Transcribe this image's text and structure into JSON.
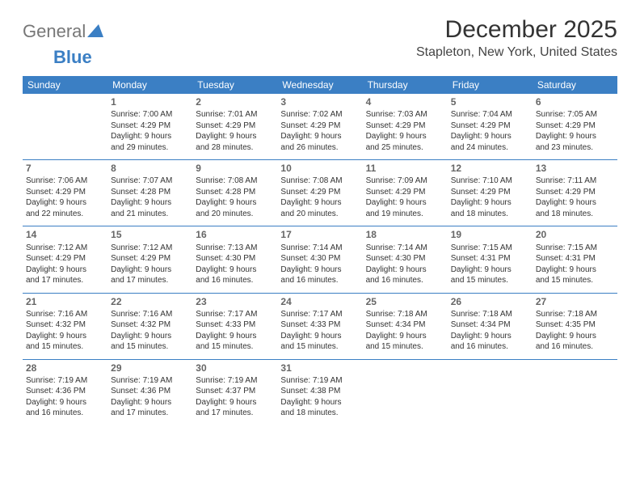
{
  "logo": {
    "text1": "General",
    "text2": "Blue"
  },
  "title": "December 2025",
  "location": "Stapleton, New York, United States",
  "colors": {
    "header_bg": "#3b7fc4",
    "header_fg": "#ffffff",
    "border": "#3b7fc4",
    "text": "#333333",
    "daynum": "#666666"
  },
  "dayHeaders": [
    "Sunday",
    "Monday",
    "Tuesday",
    "Wednesday",
    "Thursday",
    "Friday",
    "Saturday"
  ],
  "weeks": [
    [
      null,
      {
        "d": "1",
        "sr": "Sunrise: 7:00 AM",
        "ss": "Sunset: 4:29 PM",
        "dl1": "Daylight: 9 hours",
        "dl2": "and 29 minutes."
      },
      {
        "d": "2",
        "sr": "Sunrise: 7:01 AM",
        "ss": "Sunset: 4:29 PM",
        "dl1": "Daylight: 9 hours",
        "dl2": "and 28 minutes."
      },
      {
        "d": "3",
        "sr": "Sunrise: 7:02 AM",
        "ss": "Sunset: 4:29 PM",
        "dl1": "Daylight: 9 hours",
        "dl2": "and 26 minutes."
      },
      {
        "d": "4",
        "sr": "Sunrise: 7:03 AM",
        "ss": "Sunset: 4:29 PM",
        "dl1": "Daylight: 9 hours",
        "dl2": "and 25 minutes."
      },
      {
        "d": "5",
        "sr": "Sunrise: 7:04 AM",
        "ss": "Sunset: 4:29 PM",
        "dl1": "Daylight: 9 hours",
        "dl2": "and 24 minutes."
      },
      {
        "d": "6",
        "sr": "Sunrise: 7:05 AM",
        "ss": "Sunset: 4:29 PM",
        "dl1": "Daylight: 9 hours",
        "dl2": "and 23 minutes."
      }
    ],
    [
      {
        "d": "7",
        "sr": "Sunrise: 7:06 AM",
        "ss": "Sunset: 4:29 PM",
        "dl1": "Daylight: 9 hours",
        "dl2": "and 22 minutes."
      },
      {
        "d": "8",
        "sr": "Sunrise: 7:07 AM",
        "ss": "Sunset: 4:28 PM",
        "dl1": "Daylight: 9 hours",
        "dl2": "and 21 minutes."
      },
      {
        "d": "9",
        "sr": "Sunrise: 7:08 AM",
        "ss": "Sunset: 4:28 PM",
        "dl1": "Daylight: 9 hours",
        "dl2": "and 20 minutes."
      },
      {
        "d": "10",
        "sr": "Sunrise: 7:08 AM",
        "ss": "Sunset: 4:29 PM",
        "dl1": "Daylight: 9 hours",
        "dl2": "and 20 minutes."
      },
      {
        "d": "11",
        "sr": "Sunrise: 7:09 AM",
        "ss": "Sunset: 4:29 PM",
        "dl1": "Daylight: 9 hours",
        "dl2": "and 19 minutes."
      },
      {
        "d": "12",
        "sr": "Sunrise: 7:10 AM",
        "ss": "Sunset: 4:29 PM",
        "dl1": "Daylight: 9 hours",
        "dl2": "and 18 minutes."
      },
      {
        "d": "13",
        "sr": "Sunrise: 7:11 AM",
        "ss": "Sunset: 4:29 PM",
        "dl1": "Daylight: 9 hours",
        "dl2": "and 18 minutes."
      }
    ],
    [
      {
        "d": "14",
        "sr": "Sunrise: 7:12 AM",
        "ss": "Sunset: 4:29 PM",
        "dl1": "Daylight: 9 hours",
        "dl2": "and 17 minutes."
      },
      {
        "d": "15",
        "sr": "Sunrise: 7:12 AM",
        "ss": "Sunset: 4:29 PM",
        "dl1": "Daylight: 9 hours",
        "dl2": "and 17 minutes."
      },
      {
        "d": "16",
        "sr": "Sunrise: 7:13 AM",
        "ss": "Sunset: 4:30 PM",
        "dl1": "Daylight: 9 hours",
        "dl2": "and 16 minutes."
      },
      {
        "d": "17",
        "sr": "Sunrise: 7:14 AM",
        "ss": "Sunset: 4:30 PM",
        "dl1": "Daylight: 9 hours",
        "dl2": "and 16 minutes."
      },
      {
        "d": "18",
        "sr": "Sunrise: 7:14 AM",
        "ss": "Sunset: 4:30 PM",
        "dl1": "Daylight: 9 hours",
        "dl2": "and 16 minutes."
      },
      {
        "d": "19",
        "sr": "Sunrise: 7:15 AM",
        "ss": "Sunset: 4:31 PM",
        "dl1": "Daylight: 9 hours",
        "dl2": "and 15 minutes."
      },
      {
        "d": "20",
        "sr": "Sunrise: 7:15 AM",
        "ss": "Sunset: 4:31 PM",
        "dl1": "Daylight: 9 hours",
        "dl2": "and 15 minutes."
      }
    ],
    [
      {
        "d": "21",
        "sr": "Sunrise: 7:16 AM",
        "ss": "Sunset: 4:32 PM",
        "dl1": "Daylight: 9 hours",
        "dl2": "and 15 minutes."
      },
      {
        "d": "22",
        "sr": "Sunrise: 7:16 AM",
        "ss": "Sunset: 4:32 PM",
        "dl1": "Daylight: 9 hours",
        "dl2": "and 15 minutes."
      },
      {
        "d": "23",
        "sr": "Sunrise: 7:17 AM",
        "ss": "Sunset: 4:33 PM",
        "dl1": "Daylight: 9 hours",
        "dl2": "and 15 minutes."
      },
      {
        "d": "24",
        "sr": "Sunrise: 7:17 AM",
        "ss": "Sunset: 4:33 PM",
        "dl1": "Daylight: 9 hours",
        "dl2": "and 15 minutes."
      },
      {
        "d": "25",
        "sr": "Sunrise: 7:18 AM",
        "ss": "Sunset: 4:34 PM",
        "dl1": "Daylight: 9 hours",
        "dl2": "and 15 minutes."
      },
      {
        "d": "26",
        "sr": "Sunrise: 7:18 AM",
        "ss": "Sunset: 4:34 PM",
        "dl1": "Daylight: 9 hours",
        "dl2": "and 16 minutes."
      },
      {
        "d": "27",
        "sr": "Sunrise: 7:18 AM",
        "ss": "Sunset: 4:35 PM",
        "dl1": "Daylight: 9 hours",
        "dl2": "and 16 minutes."
      }
    ],
    [
      {
        "d": "28",
        "sr": "Sunrise: 7:19 AM",
        "ss": "Sunset: 4:36 PM",
        "dl1": "Daylight: 9 hours",
        "dl2": "and 16 minutes."
      },
      {
        "d": "29",
        "sr": "Sunrise: 7:19 AM",
        "ss": "Sunset: 4:36 PM",
        "dl1": "Daylight: 9 hours",
        "dl2": "and 17 minutes."
      },
      {
        "d": "30",
        "sr": "Sunrise: 7:19 AM",
        "ss": "Sunset: 4:37 PM",
        "dl1": "Daylight: 9 hours",
        "dl2": "and 17 minutes."
      },
      {
        "d": "31",
        "sr": "Sunrise: 7:19 AM",
        "ss": "Sunset: 4:38 PM",
        "dl1": "Daylight: 9 hours",
        "dl2": "and 18 minutes."
      },
      null,
      null,
      null
    ]
  ]
}
